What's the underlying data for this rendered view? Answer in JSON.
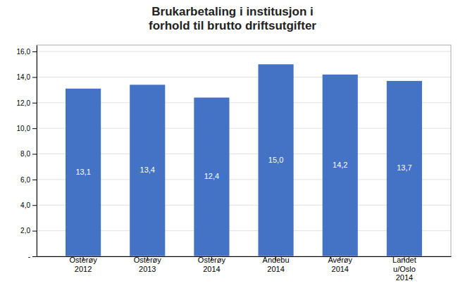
{
  "chart_data": {
    "type": "bar",
    "title": "Brukarbetaling i institusjon i\nforhold til brutto driftsutgifter",
    "categories": [
      "Osterøy\n2012",
      "Osterøy\n2013",
      "Osterøy\n2014",
      "Andebu\n2014",
      "Averøy\n2014",
      "Landet\nu/Oslo\n2014"
    ],
    "values": [
      13.1,
      13.4,
      12.4,
      15.0,
      14.2,
      13.7
    ],
    "value_labels": [
      "13,1",
      "13,4",
      "12,4",
      "15,0",
      "14,2",
      "13,7"
    ],
    "data_labels": true,
    "color": "#4472C4",
    "ylim": [
      0,
      16.5
    ],
    "yticks": [
      {
        "value": 0,
        "label": "-"
      },
      {
        "value": 2.0,
        "label": "2,0"
      },
      {
        "value": 4.0,
        "label": "4,0"
      },
      {
        "value": 6.0,
        "label": "6,0"
      },
      {
        "value": 8.0,
        "label": "8,0"
      },
      {
        "value": 10.0,
        "label": "10,0"
      },
      {
        "value": 12.0,
        "label": "12,0"
      },
      {
        "value": 14.0,
        "label": "14,0"
      },
      {
        "value": 16.0,
        "label": "16,0"
      }
    ],
    "grid": true
  }
}
